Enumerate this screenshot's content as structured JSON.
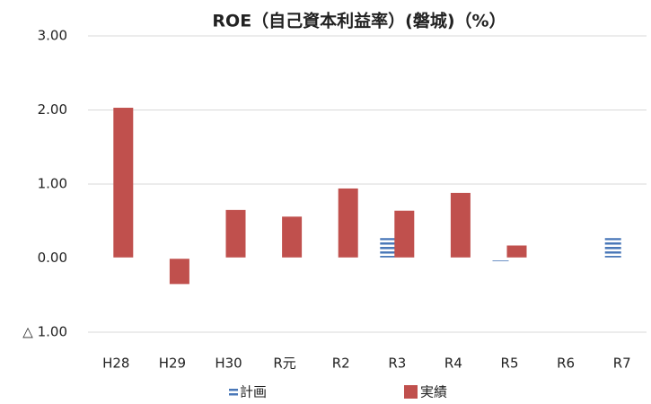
{
  "chart_data": {
    "type": "bar",
    "title": "ROE（自己資本利益率）(磐城)（%）",
    "categories": [
      "H28",
      "H29",
      "H30",
      "R元",
      "R2",
      "R3",
      "R4",
      "R5",
      "R6",
      "R7"
    ],
    "series": [
      {
        "name": "計画",
        "color": "#4a78b8",
        "values": [
          null,
          null,
          null,
          null,
          null,
          0.27,
          null,
          -0.04,
          -0.03,
          0.27
        ]
      },
      {
        "name": "実績",
        "color": "#c0504d",
        "values": [
          2.03,
          -0.35,
          0.65,
          0.56,
          0.94,
          0.64,
          0.88,
          0.17,
          null,
          null
        ]
      }
    ],
    "ylim": [
      -1,
      3
    ],
    "yticks": [
      {
        "value": 3,
        "label": "3.00"
      },
      {
        "value": 2,
        "label": "2.00"
      },
      {
        "value": 1,
        "label": "1.00"
      },
      {
        "value": 0,
        "label": "0.00"
      },
      {
        "value": -1,
        "label": "△ 1.00"
      }
    ],
    "grid": true
  }
}
